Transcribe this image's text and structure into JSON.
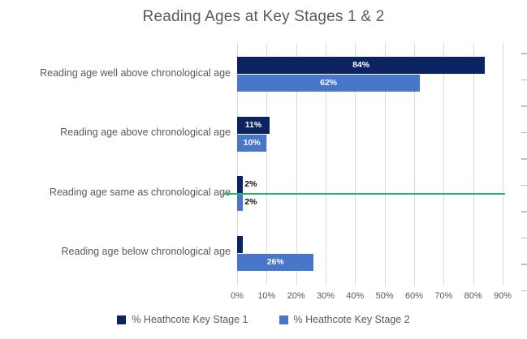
{
  "colors": {
    "series1": "#0C2361",
    "series2": "#4876C8",
    "reference_line": "#1FB56A",
    "gridline": "#D9D9D9",
    "text": "#595959",
    "inside_label": "#FFFFFF",
    "outside_label": "#111111",
    "secondary_tick": "#BFBFBF"
  },
  "chart_data": {
    "type": "bar",
    "orientation": "horizontal",
    "title": "Reading Ages at Key Stages 1 & 2",
    "categories": [
      "Reading age well above chronological age",
      "Reading age above chronological age",
      "Reading age same as chronological age",
      "Reading age below chronological age"
    ],
    "series": [
      {
        "name": "% Heathcote Key Stage 1",
        "color": "#0C2361",
        "values": [
          84,
          11,
          2,
          2
        ],
        "data_labels": [
          "84%",
          "11%",
          "2%",
          ""
        ]
      },
      {
        "name": "% Heathcote Key Stage 2",
        "color": "#4876C8",
        "values": [
          62,
          10,
          2,
          26
        ],
        "data_labels": [
          "62%",
          "10%",
          "2%",
          "26%"
        ]
      }
    ],
    "x_tick_labels": [
      "0%",
      "10%",
      "20%",
      "30%",
      "40%",
      "50%",
      "60%",
      "70%",
      "80%",
      "90%"
    ],
    "xlim": [
      0,
      90
    ],
    "grid": true,
    "legend_position": "bottom",
    "reference_line": {
      "type": "horizontal",
      "at_category": "Reading age same as chronological age",
      "color": "#1FB56A"
    }
  }
}
